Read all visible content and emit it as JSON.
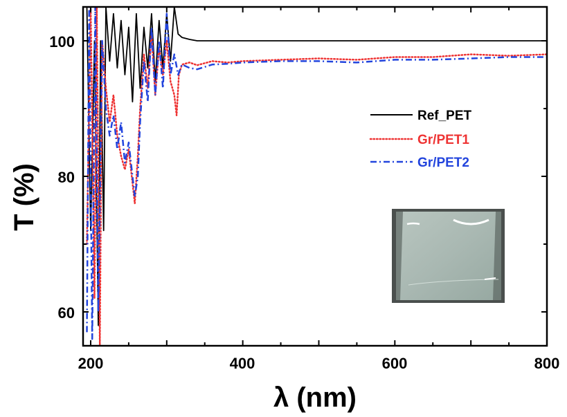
{
  "chart_data": {
    "type": "line",
    "xlabel": "λ (nm)",
    "ylabel": "T (%)",
    "xlim": [
      190,
      800
    ],
    "ylim": [
      55,
      105
    ],
    "x_ticks": [
      200,
      400,
      600,
      800
    ],
    "y_ticks": [
      60,
      80,
      100
    ],
    "grid": false,
    "legend_position": "right",
    "inset": "photo of transparent film sample",
    "series": [
      {
        "name": "Ref_PET",
        "color": "#000000",
        "style": "solid",
        "x": [
          195,
          200,
          205,
          210,
          213,
          217,
          220,
          225,
          230,
          235,
          240,
          245,
          250,
          255,
          260,
          265,
          270,
          275,
          280,
          285,
          290,
          295,
          300,
          305,
          310,
          315,
          320,
          330,
          340,
          360,
          400,
          450,
          500,
          550,
          600,
          650,
          700,
          750,
          800
        ],
        "y": [
          105,
          72,
          100,
          58,
          100,
          72,
          105,
          97,
          104,
          96,
          103,
          95,
          102,
          91,
          104,
          93,
          102,
          96,
          104,
          94,
          103,
          96,
          104,
          97,
          105,
          101,
          100.5,
          100.2,
          100,
          100,
          100,
          100,
          100,
          100,
          100,
          100,
          100,
          100,
          100
        ]
      },
      {
        "name": "Gr/PET1",
        "color": "#ee3333",
        "style": "dotted",
        "x": [
          195,
          200,
          205,
          208,
          212,
          215,
          220,
          225,
          230,
          235,
          240,
          245,
          250,
          255,
          258,
          262,
          265,
          270,
          275,
          280,
          285,
          290,
          295,
          300,
          305,
          310,
          313,
          316,
          320,
          330,
          340,
          360,
          380,
          400,
          450,
          500,
          550,
          600,
          650,
          700,
          750,
          800
        ],
        "y": [
          70,
          105,
          62,
          105,
          55,
          100,
          93,
          88,
          92,
          86,
          83,
          81,
          84,
          79,
          76,
          83,
          90,
          98,
          93,
          101,
          92,
          99,
          95,
          100,
          94,
          92,
          89,
          95,
          96.5,
          96.8,
          96.4,
          97,
          96.8,
          97,
          97.2,
          97.4,
          97.2,
          97.6,
          97.6,
          98,
          97.8,
          98
        ]
      },
      {
        "name": "Gr/PET2",
        "color": "#2244dd",
        "style": "dashdot",
        "x": [
          195,
          198,
          202,
          206,
          210,
          215,
          220,
          225,
          230,
          235,
          240,
          245,
          250,
          255,
          258,
          262,
          265,
          270,
          275,
          280,
          285,
          290,
          295,
          300,
          305,
          310,
          315,
          320,
          330,
          340,
          360,
          380,
          400,
          450,
          500,
          550,
          600,
          650,
          700,
          750,
          800
        ],
        "y": [
          57,
          105,
          56,
          105,
          60,
          100,
          90,
          86,
          89,
          84,
          88,
          82,
          85,
          80,
          77,
          80,
          88,
          97,
          91,
          102,
          92,
          100,
          93,
          104,
          95,
          98,
          95,
          96.5,
          96,
          95.8,
          96.5,
          96.6,
          96.8,
          97,
          97,
          96.8,
          97.2,
          97.2,
          97.4,
          97.6,
          97.6
        ]
      }
    ]
  }
}
